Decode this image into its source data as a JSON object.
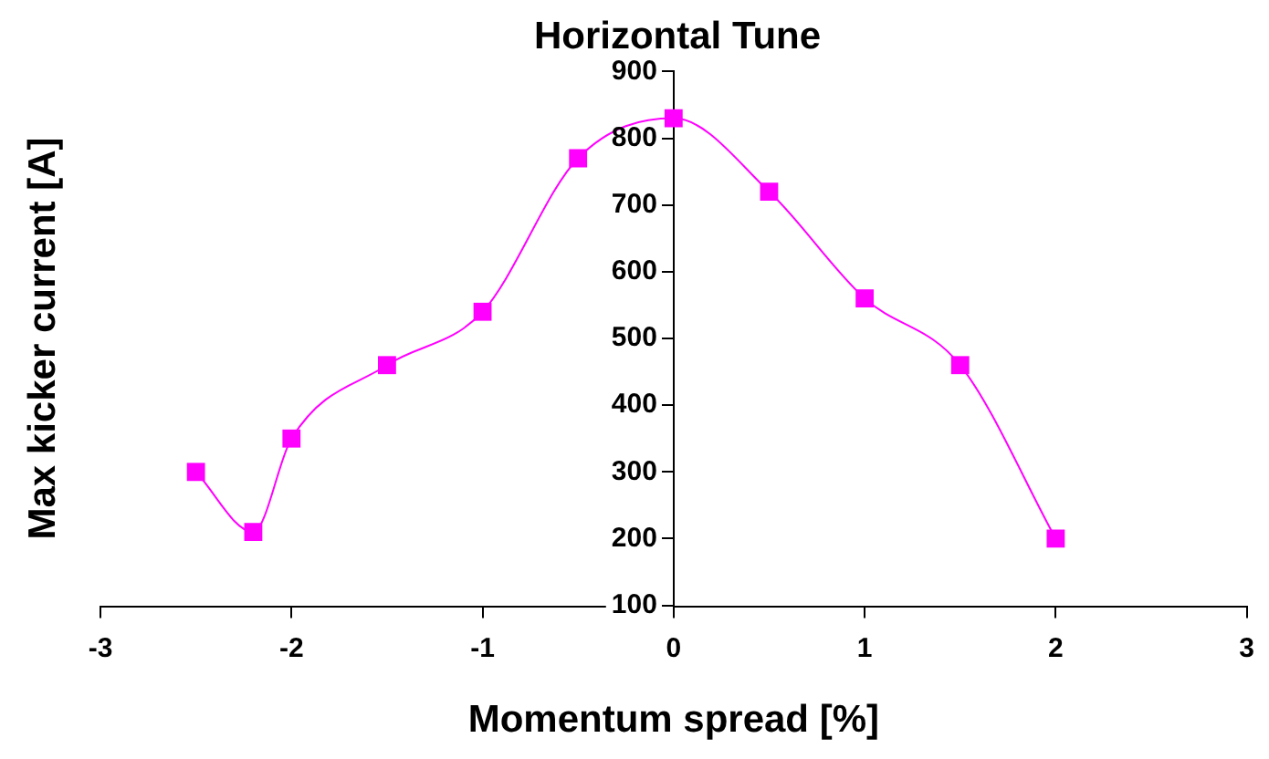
{
  "chart_data": {
    "type": "line",
    "title": "Horizontal Tune",
    "xlabel": "Momentum spread [%]",
    "ylabel": "Max kicker current [A]",
    "x": [
      -2.5,
      -2.2,
      -2,
      -1.5,
      -1,
      -0.5,
      0,
      0.5,
      1,
      1.5,
      2
    ],
    "series": [
      {
        "color": "#ff00ff",
        "values": [
          300,
          210,
          350,
          460,
          540,
          770,
          830,
          720,
          560,
          460,
          200
        ]
      }
    ],
    "xlim": [
      -3,
      3
    ],
    "xticks": [
      -3,
      -2,
      -1,
      0,
      1,
      2,
      3
    ],
    "ylim": [
      100,
      900
    ],
    "yticks": [
      100,
      200,
      300,
      400,
      500,
      600,
      700,
      800,
      900
    ],
    "grid": false,
    "legend": false,
    "marker": "square",
    "line_style": "solid"
  }
}
